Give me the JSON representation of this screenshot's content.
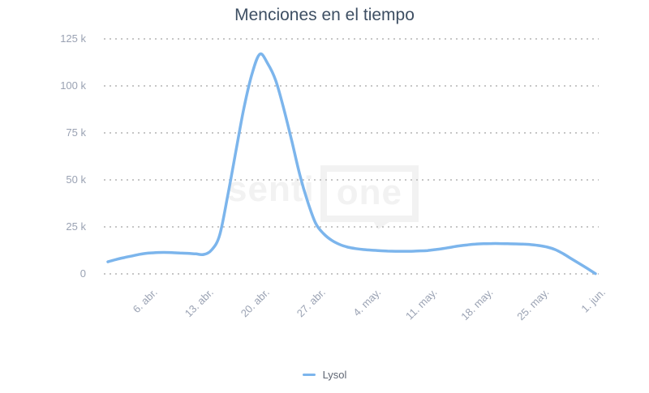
{
  "title": "Menciones en el tiempo",
  "watermark": {
    "text_left": "senti",
    "text_right": "one"
  },
  "legend": {
    "items": [
      {
        "label": "Lysol",
        "color": "#7cb5ec"
      }
    ]
  },
  "colors": {
    "line": "#7cb5ec",
    "title_text": "#3e4f63",
    "axis_label": "#9aa2b3",
    "gridline": "#c6c6c6",
    "legend_text": "#5f6673",
    "watermark": "#f2f2f2",
    "background": "#ffffff"
  },
  "chart_data": {
    "type": "line",
    "title": "Menciones en el tiempo",
    "xlabel": "",
    "ylabel": "",
    "grid": "horizontal-dotted",
    "legend_position": "bottom-center",
    "ylim": [
      0,
      125000
    ],
    "y_ticks": [
      {
        "value": 0,
        "label": "0"
      },
      {
        "value": 25000,
        "label": "25 k"
      },
      {
        "value": 50000,
        "label": "50 k"
      },
      {
        "value": 75000,
        "label": "75 k"
      },
      {
        "value": 100000,
        "label": "100 k"
      },
      {
        "value": 125000,
        "label": "125 k"
      }
    ],
    "x_tick_labels": [
      "6. abr.",
      "13. abr.",
      "20. abr.",
      "27. abr.",
      "4. may.",
      "11. may.",
      "18. may.",
      "25. may.",
      "1. jun."
    ],
    "x_tick_indices": [
      5,
      12,
      19,
      26,
      33,
      40,
      47,
      54,
      61
    ],
    "x": [
      "1. abr.",
      "2. abr.",
      "3. abr.",
      "4. abr.",
      "5. abr.",
      "6. abr.",
      "7. abr.",
      "8. abr.",
      "9. abr.",
      "10. abr.",
      "11. abr.",
      "12. abr.",
      "13. abr.",
      "14. abr.",
      "15. abr.",
      "16. abr.",
      "17. abr.",
      "18. abr.",
      "19. abr.",
      "20. abr.",
      "21. abr.",
      "22. abr.",
      "23. abr.",
      "24. abr.",
      "25. abr.",
      "26. abr.",
      "27. abr.",
      "28. abr.",
      "29. abr.",
      "30. abr.",
      "1. may.",
      "2. may.",
      "3. may.",
      "4. may.",
      "5. may.",
      "6. may.",
      "7. may.",
      "8. may.",
      "9. may.",
      "10. may.",
      "11. may.",
      "12. may.",
      "13. may.",
      "14. may.",
      "15. may.",
      "16. may.",
      "17. may.",
      "18. may.",
      "19. may.",
      "20. may.",
      "21. may.",
      "22. may.",
      "23. may.",
      "24. may.",
      "25. may.",
      "26. may.",
      "27. may.",
      "28. may.",
      "29. may.",
      "30. may.",
      "31. may.",
      "1. jun."
    ],
    "series": [
      {
        "name": "Lysol",
        "color": "#7cb5ec",
        "values": [
          6600,
          7800,
          8800,
          9700,
          10600,
          11200,
          11500,
          11600,
          11500,
          11300,
          11100,
          10800,
          10500,
          13000,
          21000,
          42000,
          65000,
          88000,
          106000,
          117000,
          112000,
          103000,
          88000,
          71000,
          53000,
          38500,
          27000,
          21500,
          18000,
          15800,
          14400,
          13600,
          13100,
          12800,
          12500,
          12300,
          12200,
          12200,
          12200,
          12400,
          12600,
          13100,
          13700,
          14400,
          15100,
          15600,
          16000,
          16200,
          16300,
          16300,
          16200,
          16100,
          16000,
          15700,
          15200,
          14400,
          13000,
          10800,
          8200,
          5600,
          3000,
          300
        ]
      }
    ]
  }
}
